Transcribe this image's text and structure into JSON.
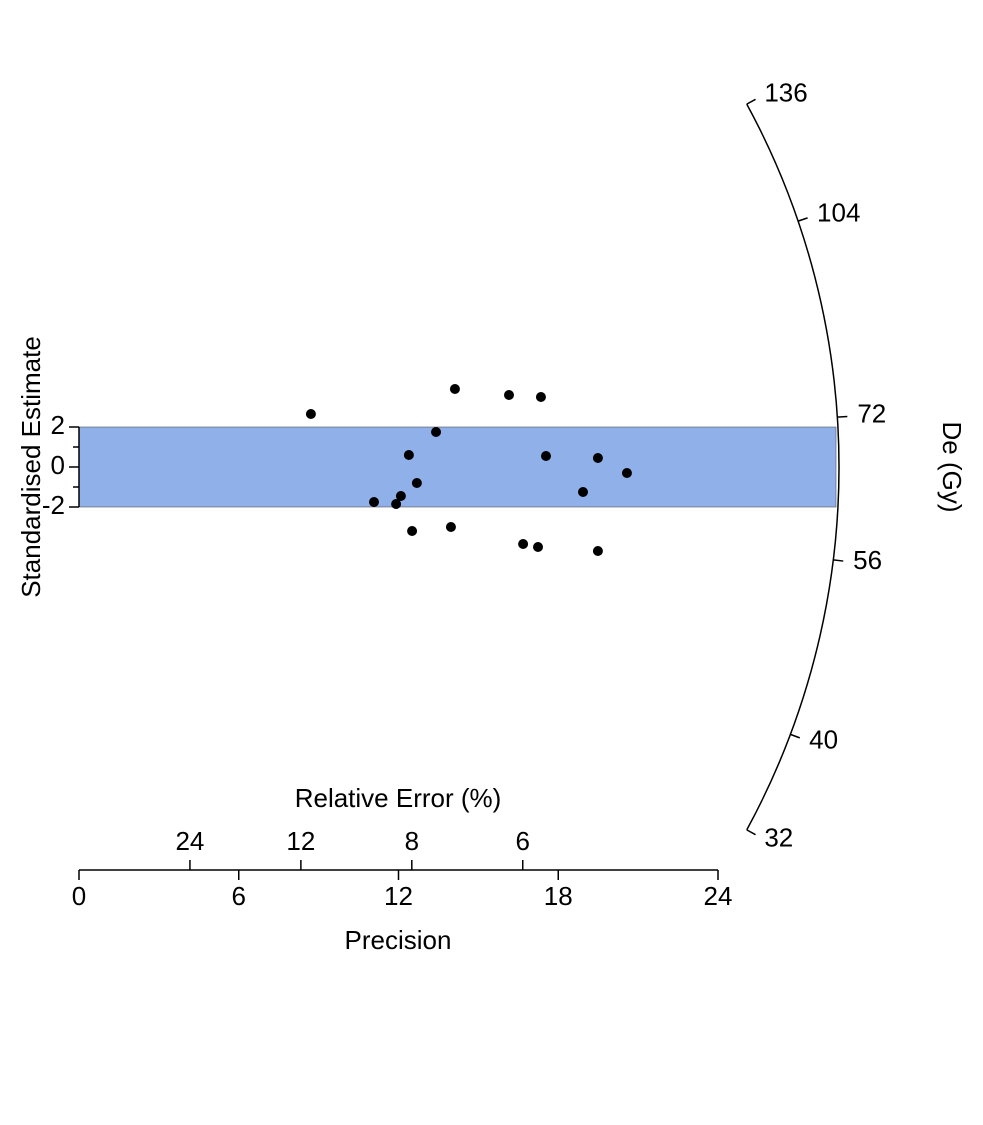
{
  "chart_data": {
    "type": "radial",
    "x_label": "Precision",
    "y_label": "Standardised Estimate",
    "relerr_label": "Relative Error (%)",
    "z_label": "De (Gy)",
    "x": [
      8.71,
      14.12,
      16.15,
      17.35,
      13.41,
      12.39,
      17.54,
      19.49,
      20.58,
      12.69,
      18.93,
      12.09,
      11.08,
      11.91,
      12.51,
      13.97,
      16.68,
      17.24,
      19.49
    ],
    "values": [
      2.65,
      3.9,
      3.6,
      3.5,
      1.75,
      0.6,
      0.55,
      0.45,
      -0.3,
      -0.8,
      -1.25,
      -1.45,
      -1.75,
      -1.85,
      -3.2,
      -3.0,
      -3.85,
      -4.0,
      -4.2
    ],
    "color": "#000000",
    "band": [
      -2,
      2
    ],
    "band_color": "#90b0ea",
    "xlim": [
      0,
      24
    ],
    "xticks": [
      0,
      6,
      12,
      18,
      24
    ],
    "yticks": [
      -2,
      0,
      2
    ],
    "relerr_ticks": [
      24,
      12,
      8,
      6
    ],
    "zlim": [
      32,
      136
    ],
    "zticks": [
      32,
      40,
      56,
      72,
      104,
      136
    ]
  }
}
